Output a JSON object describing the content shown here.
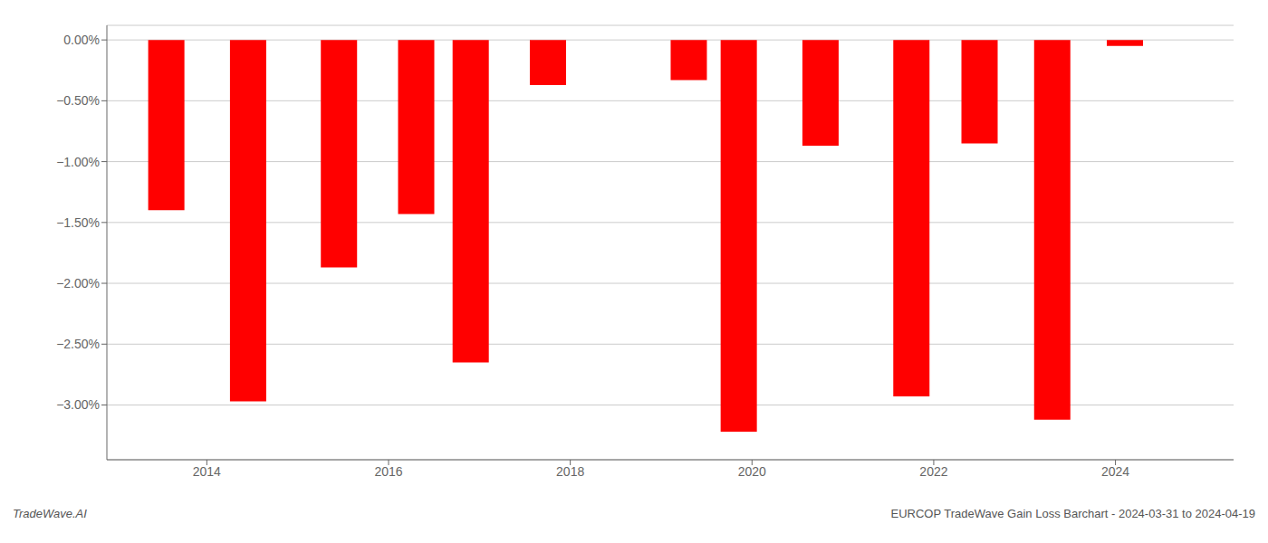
{
  "chart_data": {
    "type": "bar",
    "x": [
      2013.55,
      2014.45,
      2015.45,
      2016.3,
      2016.9,
      2017.75,
      2019.3,
      2019.85,
      2020.75,
      2021.75,
      2022.5,
      2023.3,
      2024.1
    ],
    "values": [
      -1.4,
      -2.97,
      -1.87,
      -1.43,
      -2.65,
      -0.37,
      -0.33,
      -3.22,
      -0.87,
      -2.93,
      -0.85,
      -3.12,
      -0.05
    ],
    "color": "#ff0000",
    "xlim": [
      2012.9,
      2025.3
    ],
    "xticks": [
      2014,
      2016,
      2018,
      2020,
      2022,
      2024
    ],
    "ylim": [
      -3.45,
      0.12
    ],
    "yticks": [
      {
        "value": 0.0,
        "label": "0.00%"
      },
      {
        "value": -0.5,
        "label": "−0.50%"
      },
      {
        "value": -1.0,
        "label": "−1.00%"
      },
      {
        "value": -1.5,
        "label": "−1.50%"
      },
      {
        "value": -2.0,
        "label": "−2.00%"
      },
      {
        "value": -2.5,
        "label": "−2.50%"
      },
      {
        "value": -3.0,
        "label": "−3.00%"
      }
    ],
    "grid": true,
    "annotations": [
      "TradeWave.AI",
      "EURCOP TradeWave Gain Loss Barchart - 2024-03-31 to 2024-04-19"
    ]
  }
}
